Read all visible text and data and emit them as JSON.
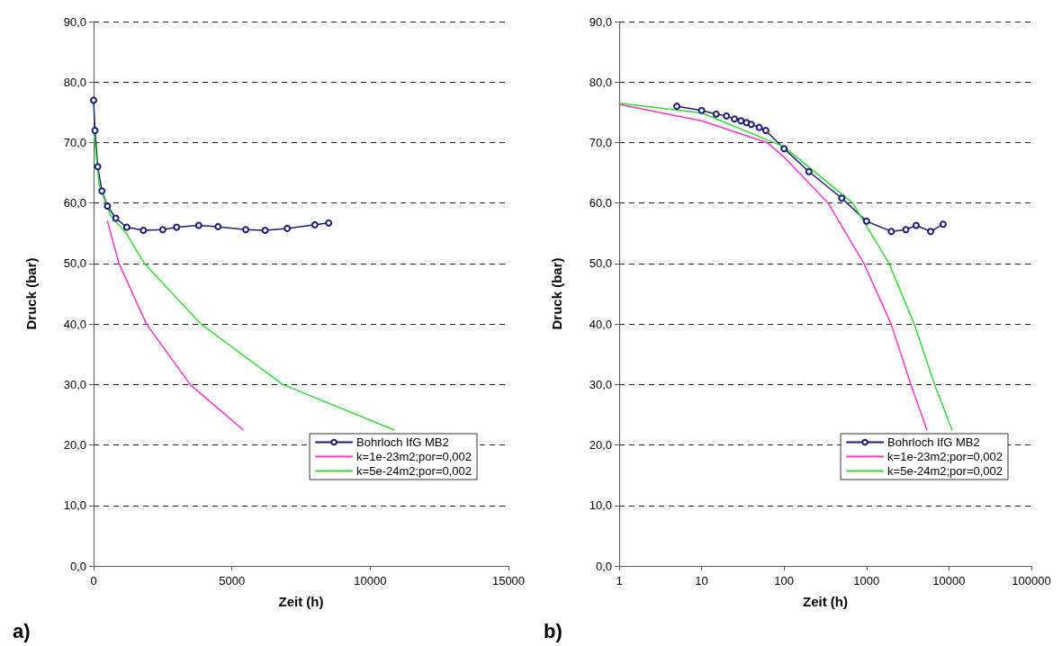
{
  "chart_data": [
    {
      "type": "line",
      "xlabel": "Zeit (h)",
      "ylabel": "Druck (bar)",
      "annotations": [
        "a)"
      ],
      "xlim": [
        0,
        15000
      ],
      "xticks": [
        0,
        5000,
        10000,
        15000
      ],
      "ylim": [
        0,
        90
      ],
      "yticks": [
        {
          "value": 0,
          "label": "0,0"
        },
        {
          "value": 10,
          "label": "10,0"
        },
        {
          "value": 20,
          "label": "20,0"
        },
        {
          "value": 30,
          "label": "30,0"
        },
        {
          "value": 40,
          "label": "40,0"
        },
        {
          "value": 50,
          "label": "50,0"
        },
        {
          "value": 60,
          "label": "60,0"
        },
        {
          "value": 70,
          "label": "70,0"
        },
        {
          "value": 80,
          "label": "80,0"
        },
        {
          "value": 90,
          "label": "90,0"
        }
      ],
      "grid": "y",
      "legend": "bottom right",
      "series": [
        {
          "name": "Bohrloch IfG MB2",
          "color": "#1b1b7a",
          "marker": "circle",
          "x": [
            0,
            50,
            150,
            300,
            500,
            800,
            1200,
            1800,
            2500,
            3000,
            3800,
            4500,
            5500,
            6200,
            7000,
            8000,
            8500
          ],
          "values": [
            77,
            72,
            66,
            62,
            59.5,
            57.5,
            56,
            55.5,
            55.6,
            56,
            56.3,
            56.1,
            55.6,
            55.5,
            55.8,
            56.4,
            56.7
          ]
        },
        {
          "name": "k=1e-23m2;por=0,002",
          "color": "#ff33cc",
          "marker": "none",
          "x": [
            500,
            920,
            1910,
            3490,
            5400
          ],
          "values": [
            57,
            50,
            40,
            30,
            22.5
          ]
        },
        {
          "name": "k=5e-24m2;por=0,002",
          "color": "#33dd33",
          "marker": "none",
          "x": [
            0,
            200,
            600,
            1180,
            1840,
            3880,
            6840,
            10860
          ],
          "values": [
            72,
            63,
            58,
            55,
            50,
            40,
            30,
            22.5
          ]
        }
      ]
    },
    {
      "type": "line",
      "xlabel": "Zeit (h)",
      "ylabel": "Druck (bar)",
      "annotations": [
        "b)"
      ],
      "log": "x",
      "xlim": [
        1,
        100000
      ],
      "xticks": [
        1,
        10,
        100,
        1000,
        10000,
        100000
      ],
      "ylim": [
        0,
        90
      ],
      "yticks": [
        {
          "value": 0,
          "label": "0,0"
        },
        {
          "value": 10,
          "label": "10,0"
        },
        {
          "value": 20,
          "label": "20,0"
        },
        {
          "value": 30,
          "label": "30,0"
        },
        {
          "value": 40,
          "label": "40,0"
        },
        {
          "value": 50,
          "label": "50,0"
        },
        {
          "value": 60,
          "label": "60,0"
        },
        {
          "value": 70,
          "label": "70,0"
        },
        {
          "value": 80,
          "label": "80,0"
        },
        {
          "value": 90,
          "label": "90,0"
        }
      ],
      "grid": "y",
      "legend": "bottom right",
      "series": [
        {
          "name": "Bohrloch IfG MB2",
          "color": "#1b1b7a",
          "marker": "circle",
          "x": [
            5,
            10,
            15,
            20,
            25,
            30,
            35,
            40,
            50,
            60,
            100,
            200,
            500,
            1000,
            2000,
            3000,
            4000,
            6000,
            8500
          ],
          "values": [
            76,
            75.3,
            74.7,
            74.4,
            73.9,
            73.6,
            73.3,
            73,
            72.5,
            72,
            69,
            65.2,
            60.8,
            57,
            55.3,
            55.6,
            56.3,
            55.3,
            56.5
          ]
        },
        {
          "name": "k=1e-23m2;por=0,002",
          "color": "#ff33cc",
          "marker": "none",
          "x": [
            1,
            10,
            62,
            100,
            342,
            930,
            1990,
            3450,
            5400
          ],
          "values": [
            76.3,
            73.6,
            70,
            67.6,
            60,
            50,
            40,
            30,
            22.5
          ]
        },
        {
          "name": "k=5e-24m2;por=0,002",
          "color": "#33dd33",
          "marker": "none",
          "x": [
            1,
            10,
            100,
            680,
            1880,
            3790,
            6680,
            10900
          ],
          "values": [
            76.5,
            74.9,
            69.3,
            60,
            50,
            40,
            30,
            22.5
          ]
        }
      ]
    }
  ]
}
